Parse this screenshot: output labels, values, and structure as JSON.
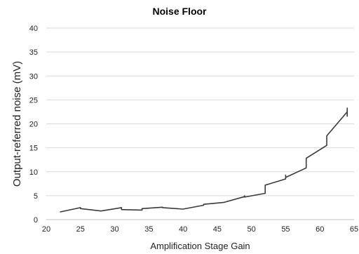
{
  "chart_data": {
    "type": "line",
    "title": "Noise Floor",
    "xlabel": "Amplification Stage Gain",
    "ylabel": "Output-referred noise (mV)",
    "xlim": [
      20,
      65
    ],
    "ylim": [
      0,
      40
    ],
    "xticks": [
      20,
      25,
      30,
      35,
      40,
      45,
      50,
      55,
      60,
      65
    ],
    "yticks": [
      0,
      5,
      10,
      15,
      20,
      25,
      30,
      35,
      40
    ],
    "grid": true,
    "legend": "none",
    "series": [
      {
        "color": "#3a3a3a",
        "points": [
          [
            22,
            1.6
          ],
          [
            25,
            2.5
          ],
          [
            25,
            2.3
          ],
          [
            28,
            1.8
          ],
          [
            31,
            2.5
          ],
          [
            31,
            2.1
          ],
          [
            34,
            2.0
          ],
          [
            34,
            2.3
          ],
          [
            37,
            2.6
          ],
          [
            37,
            2.5
          ],
          [
            40,
            2.2
          ],
          [
            43,
            3.0
          ],
          [
            43,
            3.2
          ],
          [
            46,
            3.6
          ],
          [
            49,
            4.8
          ],
          [
            49,
            5.0
          ],
          [
            49,
            4.7
          ],
          [
            52,
            5.5
          ],
          [
            52,
            7.2
          ],
          [
            55,
            8.5
          ],
          [
            55,
            9.3
          ],
          [
            55,
            8.8
          ],
          [
            58,
            10.8
          ],
          [
            58,
            12.8
          ],
          [
            61,
            15.5
          ],
          [
            61,
            17.5
          ],
          [
            64,
            22.5
          ],
          [
            64,
            23.3
          ],
          [
            64,
            21.5
          ]
        ]
      }
    ]
  }
}
